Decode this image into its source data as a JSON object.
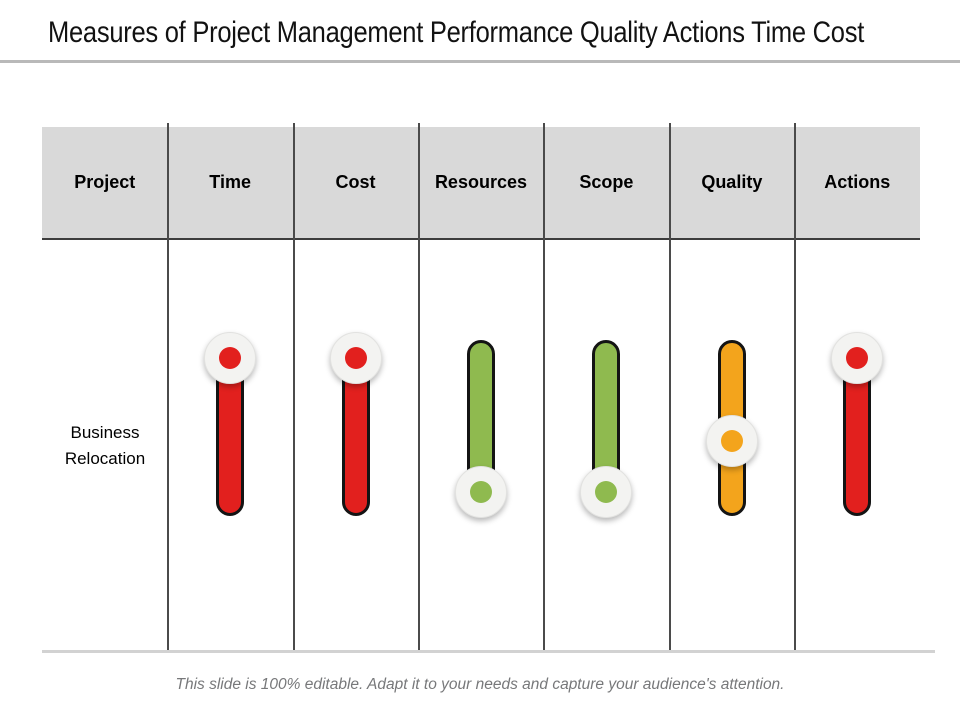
{
  "title": "Measures of Project Management Performance Quality Actions Time Cost",
  "footer": "This slide is 100% editable.  Adapt it to your needs and capture your audience's attention.",
  "colors": {
    "red": "#e2201e",
    "green": "#8fba4f",
    "orange": "#f3a41c",
    "header_bg": "#d9d9d9",
    "knob_base": "#f3f3f1",
    "divider_dark": "#4b4b4b",
    "divider_light": "#d2d2d2",
    "title_rule": "#b9b9b9"
  },
  "table": {
    "columns": [
      "Project",
      "Time",
      "Cost",
      "Resources",
      "Scope",
      "Quality",
      "Actions"
    ],
    "row": {
      "project": "Business Relocation",
      "sliders": [
        {
          "column": "Time",
          "color": "#e2201e",
          "color_name": "red",
          "position": "top",
          "level": "high"
        },
        {
          "column": "Cost",
          "color": "#e2201e",
          "color_name": "red",
          "position": "top",
          "level": "high"
        },
        {
          "column": "Resources",
          "color": "#8fba4f",
          "color_name": "green",
          "position": "bottom",
          "level": "low"
        },
        {
          "column": "Scope",
          "color": "#8fba4f",
          "color_name": "green",
          "position": "bottom",
          "level": "low"
        },
        {
          "column": "Quality",
          "color": "#f3a41c",
          "color_name": "orange",
          "position": "middle",
          "level": "medium"
        },
        {
          "column": "Actions",
          "color": "#e2201e",
          "color_name": "red",
          "position": "top",
          "level": "high"
        }
      ]
    }
  }
}
